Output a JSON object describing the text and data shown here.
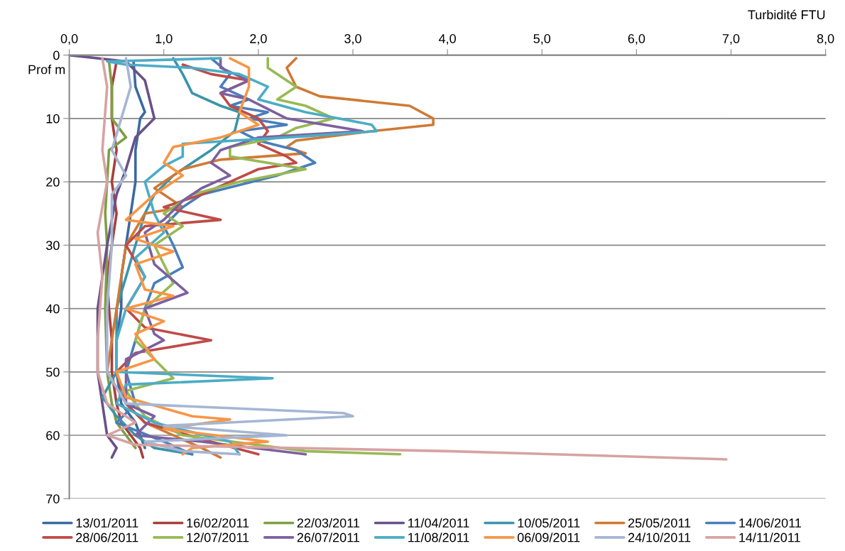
{
  "chart_data": {
    "type": "line",
    "xlabel": "Turbidité FTU",
    "ylabel": "Prof m",
    "xlim": [
      0,
      8
    ],
    "xticks": [
      {
        "value": 0,
        "label": "0,0"
      },
      {
        "value": 1,
        "label": "1,0"
      },
      {
        "value": 2,
        "label": "2,0"
      },
      {
        "value": 3,
        "label": "3,0"
      },
      {
        "value": 4,
        "label": "4,0"
      },
      {
        "value": 5,
        "label": "5,0"
      },
      {
        "value": 6,
        "label": "6,0"
      },
      {
        "value": 7,
        "label": "7,0"
      },
      {
        "value": 8,
        "label": "8,0"
      }
    ],
    "ylim": [
      70,
      0
    ],
    "yticks": [
      0,
      10,
      20,
      30,
      40,
      50,
      60,
      70
    ],
    "grid": "y",
    "legend": "bottom",
    "marker": "none",
    "line_style": "solid",
    "series": [
      {
        "name": "13/01/2011",
        "color": "#3b6aa0",
        "x": [
          0.68,
          0.7,
          0.8,
          0.75,
          0.7,
          0.7,
          0.65,
          0.6,
          0.55,
          0.55,
          0.5,
          0.5,
          0.55,
          0.7,
          0.75,
          0.8
        ],
        "values": [
          1,
          5,
          9,
          10,
          15,
          20,
          25,
          30,
          35,
          40,
          45,
          50,
          55,
          58,
          60,
          62
        ]
      },
      {
        "name": "16/02/2011",
        "color": "#a7403d",
        "x": [
          0.5,
          0.45,
          0.45,
          0.5,
          0.45,
          0.5,
          0.45,
          0.4,
          0.42,
          0.45,
          0.45,
          0.5,
          0.55,
          0.65,
          0.75,
          0.78
        ],
        "values": [
          1,
          5,
          10,
          15,
          20,
          25,
          30,
          35,
          40,
          45,
          50,
          55,
          58,
          60,
          62,
          63.5
        ]
      },
      {
        "name": "22/03/2011",
        "color": "#7e9e44",
        "x": [
          0.42,
          0.45,
          0.45,
          0.6,
          0.42,
          0.4,
          0.38,
          0.4,
          0.38,
          0.4,
          0.45,
          0.5,
          0.6,
          0.7
        ],
        "values": [
          1,
          5,
          10,
          13,
          15,
          20,
          25,
          30,
          40,
          50,
          55,
          58,
          60,
          62
        ]
      },
      {
        "name": "11/04/2011",
        "color": "#6a5189",
        "x": [
          0.0,
          0.6,
          0.8,
          0.9,
          0.7,
          0.6,
          0.5,
          0.4,
          0.3,
          0.3,
          0.35,
          0.4,
          0.5,
          0.45
        ],
        "values": [
          0,
          1,
          4,
          10,
          13,
          18,
          22,
          30,
          40,
          50,
          55,
          60,
          62,
          63.5
        ]
      },
      {
        "name": "10/05/2011",
        "color": "#3c94aa",
        "x": [
          1.1,
          1.2,
          1.3,
          1.6,
          1.8,
          1.75,
          1.5,
          1.3,
          1.1,
          0.9,
          0.8,
          0.7,
          0.6,
          0.5,
          0.5,
          0.35,
          0.5,
          0.7,
          0.9,
          1.3
        ],
        "values": [
          0.5,
          3,
          6,
          8,
          9,
          12,
          15,
          17,
          19,
          22,
          25,
          30,
          35,
          40,
          50,
          54,
          57,
          60,
          62,
          63
        ]
      },
      {
        "name": "25/05/2011",
        "color": "#cf7a35",
        "x": [
          2.4,
          2.3,
          2.4,
          2.65,
          3.6,
          3.85,
          3.85,
          3.2,
          2.4,
          2.3,
          2.5,
          1.6,
          1.2,
          0.9,
          1.2,
          0.8,
          0.6,
          0.5,
          0.4,
          0.6,
          0.8,
          1.4,
          1.6
        ],
        "values": [
          0.5,
          2,
          5,
          6.5,
          8,
          10,
          11,
          12,
          13.5,
          14.5,
          15.5,
          16.5,
          18,
          21,
          24,
          25,
          30,
          40,
          50,
          55,
          58,
          62,
          63.5
        ]
      },
      {
        "name": "14/06/2011",
        "color": "#4a7ebb",
        "x": [
          1.5,
          1.7,
          1.6,
          1.9,
          1.7,
          2.1,
          1.9,
          2.3,
          1.8,
          2.0,
          2.4,
          2.6,
          2.2,
          1.8,
          1.4,
          1.2,
          1.0,
          1.1,
          1.2,
          0.9,
          0.8,
          0.7,
          0.6,
          0.7,
          0.5,
          1.0,
          1.3
        ],
        "values": [
          0.5,
          3,
          5,
          7,
          8,
          9,
          10,
          11,
          12,
          13.5,
          15,
          17,
          19,
          20.5,
          22,
          24,
          27,
          30,
          33.5,
          36,
          40,
          45,
          50,
          55,
          58,
          61,
          63
        ]
      },
      {
        "name": "28/06/2011",
        "color": "#be4b48",
        "x": [
          1.2,
          1.5,
          1.9,
          1.6,
          1.7,
          2.0,
          2.1,
          2.0,
          2.3,
          2.4,
          2.0,
          1.7,
          1.4,
          1.0,
          1.6,
          0.8,
          0.6,
          0.8,
          0.6,
          0.8,
          1.5,
          0.7,
          0.5,
          0.6,
          0.8,
          1.5,
          2.0
        ],
        "values": [
          1.5,
          3,
          4,
          6,
          8,
          10,
          12,
          14,
          16,
          17,
          18,
          20,
          22,
          24,
          26,
          27,
          30,
          35,
          40,
          43,
          45,
          47,
          50,
          55,
          58,
          61,
          63
        ]
      },
      {
        "name": "12/07/2011",
        "color": "#98b954",
        "x": [
          2.1,
          2.1,
          2.4,
          2.2,
          2.5,
          2.8,
          2.4,
          2.2,
          1.7,
          1.7,
          2.5,
          1.8,
          1.3,
          1.0,
          1.2,
          0.9,
          1.1,
          0.8,
          0.7,
          1.1,
          0.6,
          0.8,
          1.2,
          2.5,
          3.5
        ],
        "values": [
          0.5,
          2,
          5,
          7,
          8,
          10,
          11.5,
          13,
          14.5,
          16,
          18,
          20,
          22,
          25,
          27,
          30,
          36,
          40,
          45,
          51,
          53,
          57,
          60,
          62.5,
          63
        ]
      },
      {
        "name": "26/07/2011",
        "color": "#7d60a0",
        "x": [
          1.6,
          1.6,
          1.9,
          1.6,
          1.9,
          2.3,
          3.1,
          2.0,
          1.6,
          1.5,
          1.7,
          1.4,
          1.2,
          1.0,
          0.8,
          0.9,
          1.25,
          0.8,
          0.9,
          1.0,
          0.6,
          0.6,
          0.9,
          0.7,
          1.4,
          2.5
        ],
        "values": [
          0.5,
          2,
          4,
          6,
          7,
          10,
          12,
          13,
          15,
          17,
          19,
          21,
          23,
          26,
          28,
          33,
          37.5,
          40,
          44,
          45,
          48,
          55,
          57,
          60,
          61,
          63
        ]
      },
      {
        "name": "11/08/2011",
        "color": "#4bacc6",
        "x": [
          1.6,
          0.4,
          0.6,
          1.3,
          1.8,
          2.1,
          2.0,
          2.5,
          3.2,
          3.25,
          2.5,
          1.2,
          1.2,
          1.0,
          0.8,
          0.9,
          1.0,
          0.7,
          0.8,
          0.6,
          0.5,
          0.5,
          2.15,
          0.6,
          0.5,
          0.9,
          1.7,
          1.8
        ],
        "values": [
          0.5,
          1,
          1.5,
          2,
          3,
          5,
          7,
          9,
          11,
          12,
          12.8,
          14,
          16,
          17.5,
          20,
          25,
          28,
          32,
          35,
          40,
          45,
          50,
          51,
          52,
          55,
          58,
          61,
          63
        ]
      },
      {
        "name": "06/09/2011",
        "color": "#f79646",
        "x": [
          1.7,
          1.9,
          1.9,
          1.8,
          2.0,
          1.6,
          1.1,
          1.0,
          1.2,
          0.9,
          0.6,
          1.1,
          0.7,
          1.1,
          0.7,
          0.8,
          1.1,
          0.6,
          1.0,
          0.7,
          0.9,
          0.5,
          0.6,
          1.3,
          1.7,
          1.0,
          2.1,
          1.3,
          1.2
        ],
        "values": [
          0.5,
          2,
          5,
          9,
          11,
          13,
          14.5,
          17,
          19,
          22,
          26,
          27,
          29,
          31,
          33,
          37,
          38,
          40,
          42,
          44,
          48,
          50,
          54,
          57,
          57.5,
          59,
          61,
          62,
          63
        ]
      },
      {
        "name": "24/10/2011",
        "color": "#a5b6d4",
        "x": [
          0.6,
          0.65,
          0.55,
          0.45,
          0.6,
          0.45,
          0.45,
          0.4,
          0.4,
          0.6,
          2.9,
          3.0,
          1.0,
          2.3,
          0.8,
          1.2,
          1.8
        ],
        "values": [
          0.5,
          5,
          10,
          15,
          19,
          22,
          30,
          40,
          50,
          55,
          56.5,
          57,
          58.5,
          60,
          61,
          62.5,
          63
        ]
      },
      {
        "name": "14/11/2011",
        "color": "#d6a3a2",
        "x": [
          0.35,
          0.4,
          0.35,
          0.4,
          0.3,
          0.35,
          0.3,
          0.3,
          0.4,
          0.6,
          0.7,
          0.4,
          0.7,
          4.0,
          6.95
        ],
        "values": [
          0.5,
          5,
          15,
          20,
          28,
          35,
          45,
          50,
          55,
          57,
          58,
          60,
          61.5,
          62.5,
          63.8
        ]
      }
    ]
  }
}
